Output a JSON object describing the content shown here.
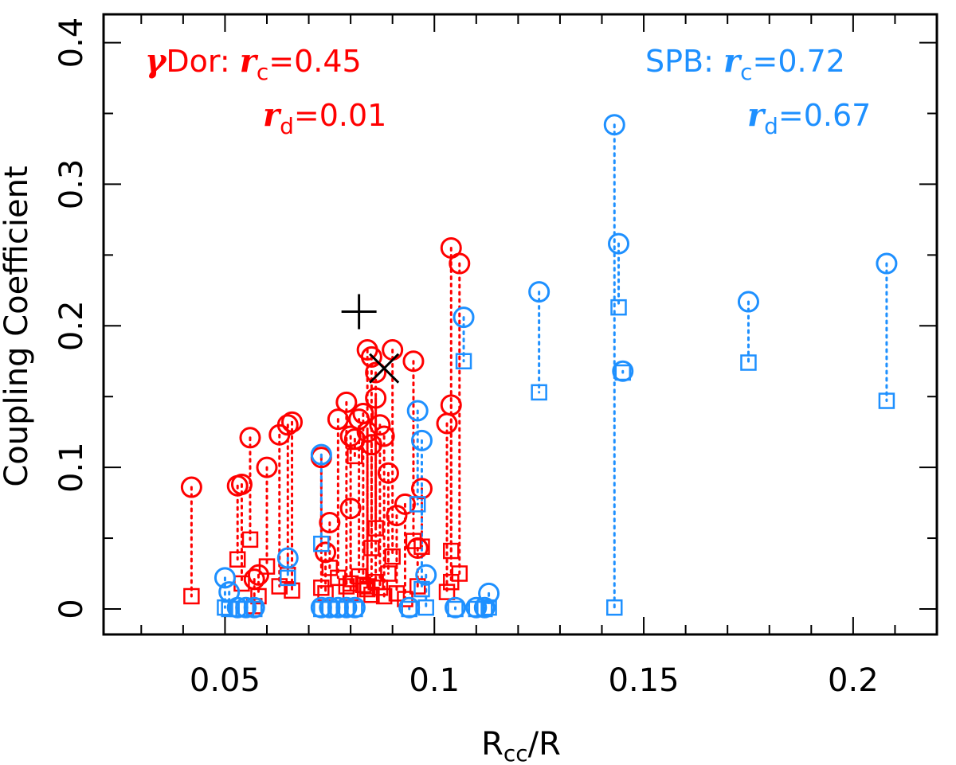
{
  "chart_data": {
    "type": "scatter",
    "xlabel": "R",
    "xlabel_sub": "cc",
    "xlabel_suffix": "/R",
    "ylabel": "Coupling Coefficient",
    "xlim": [
      0.021,
      0.22
    ],
    "ylim": [
      -0.018,
      0.42
    ],
    "x_ticks": [
      0.05,
      0.1,
      0.15,
      0.2
    ],
    "x_tick_labels": [
      "0.05",
      "0.1",
      "0.15",
      "0.2"
    ],
    "y_ticks": [
      0,
      0.1,
      0.2,
      0.3,
      0.4
    ],
    "y_tick_labels": [
      "0",
      "0.1",
      "0.2",
      "0.3",
      "0.4"
    ],
    "colors": {
      "gdor": "#ff0000",
      "spb": "#1e90ff",
      "marker": "#000000"
    },
    "annotations": {
      "gdor": {
        "prefix": "γ",
        "name": "Dor: ",
        "r": "r",
        "sub_c": "c",
        "val_c": "=0.45",
        "sub_d": "d",
        "val_d": "=0.01"
      },
      "spb": {
        "name": "SPB: ",
        "r": "r",
        "sub_c": "c",
        "val_c": "=0.72",
        "sub_d": "d",
        "val_d": "=0.67"
      }
    },
    "series": [
      {
        "name": "gamma Dor",
        "color": "#ff0000",
        "points": [
          {
            "x": 0.042,
            "circle": 0.086,
            "square": 0.009
          },
          {
            "x": 0.053,
            "circle": 0.087,
            "square": 0.035
          },
          {
            "x": 0.054,
            "circle": 0.088,
            "square": 0.018
          },
          {
            "x": 0.056,
            "circle": 0.121,
            "square": 0.049
          },
          {
            "x": 0.057,
            "circle": 0.021,
            "square": 0.002
          },
          {
            "x": 0.058,
            "circle": 0.024,
            "square": 0.009
          },
          {
            "x": 0.06,
            "circle": 0.1,
            "square": 0.03
          },
          {
            "x": 0.063,
            "circle": 0.123,
            "square": 0.016
          },
          {
            "x": 0.065,
            "circle": 0.13,
            "square": 0.024
          },
          {
            "x": 0.066,
            "circle": 0.132,
            "square": 0.013
          },
          {
            "x": 0.073,
            "circle": 0.107,
            "square": 0.015
          },
          {
            "x": 0.074,
            "circle": 0.04,
            "square": 0.011
          },
          {
            "x": 0.075,
            "circle": 0.061,
            "square": 0.029
          },
          {
            "x": 0.077,
            "circle": 0.134,
            "square": 0.022
          },
          {
            "x": 0.079,
            "circle": 0.146,
            "square": 0.016
          },
          {
            "x": 0.08,
            "circle": 0.122,
            "square": 0.018
          },
          {
            "x": 0.08,
            "circle": 0.071,
            "square": 0.011
          },
          {
            "x": 0.081,
            "circle": 0.12,
            "square": 0.108
          },
          {
            "x": 0.082,
            "circle": 0.134,
            "square": 0.023
          },
          {
            "x": 0.083,
            "circle": 0.138,
            "square": 0.017
          },
          {
            "x": 0.084,
            "circle": 0.125,
            "square": 0.014
          },
          {
            "x": 0.084,
            "circle": 0.183,
            "square": 0.016
          },
          {
            "x": 0.085,
            "circle": 0.116,
            "square": 0.01
          },
          {
            "x": 0.085,
            "circle": 0.178,
            "square": 0.043
          },
          {
            "x": 0.086,
            "circle": 0.167,
            "square": 0.057
          },
          {
            "x": 0.086,
            "circle": 0.149,
            "square": 0.019
          },
          {
            "x": 0.087,
            "circle": 0.13,
            "square": 0.015
          },
          {
            "x": 0.088,
            "circle": 0.122,
            "square": 0.009
          },
          {
            "x": 0.089,
            "circle": 0.096,
            "square": 0.025
          },
          {
            "x": 0.09,
            "circle": 0.183,
            "square": 0.037
          },
          {
            "x": 0.091,
            "circle": 0.066,
            "square": 0.011
          },
          {
            "x": 0.093,
            "circle": 0.074,
            "square": 0.007
          },
          {
            "x": 0.095,
            "circle": 0.175,
            "square": 0.048
          },
          {
            "x": 0.096,
            "circle": 0.043,
            "square": 0.016
          },
          {
            "x": 0.097,
            "circle": 0.085,
            "square": 0.044
          },
          {
            "x": 0.103,
            "circle": 0.131,
            "square": 0.012
          },
          {
            "x": 0.104,
            "circle": 0.144,
            "square": 0.041
          },
          {
            "x": 0.104,
            "circle": 0.255,
            "square": 0.019
          },
          {
            "x": 0.106,
            "circle": 0.244,
            "square": 0.025
          }
        ]
      },
      {
        "name": "SPB",
        "color": "#1e90ff",
        "points": [
          {
            "x": 0.05,
            "circle": 0.022,
            "square": 0.001
          },
          {
            "x": 0.051,
            "circle": 0.012,
            "square": 0.0
          },
          {
            "x": 0.053,
            "circle": 0.001,
            "square": 0.0
          },
          {
            "x": 0.055,
            "circle": 0.001,
            "square": 0.0
          },
          {
            "x": 0.057,
            "circle": 0.001,
            "square": 0.0
          },
          {
            "x": 0.065,
            "circle": 0.036,
            "square": 0.022
          },
          {
            "x": 0.073,
            "circle": 0.109,
            "square": 0.046
          },
          {
            "x": 0.073,
            "circle": 0.001,
            "square": 0.0
          },
          {
            "x": 0.075,
            "circle": 0.001,
            "square": 0.0
          },
          {
            "x": 0.077,
            "circle": 0.001,
            "square": 0.0
          },
          {
            "x": 0.079,
            "circle": 0.001,
            "square": 0.0
          },
          {
            "x": 0.081,
            "circle": 0.001,
            "square": 0.0
          },
          {
            "x": 0.094,
            "circle": 0.001,
            "square": 0.0
          },
          {
            "x": 0.096,
            "circle": 0.14,
            "square": 0.074
          },
          {
            "x": 0.097,
            "circle": 0.119,
            "square": 0.014
          },
          {
            "x": 0.098,
            "circle": 0.024,
            "square": 0.001
          },
          {
            "x": 0.105,
            "circle": 0.001,
            "square": 0.0
          },
          {
            "x": 0.107,
            "circle": 0.206,
            "square": 0.175
          },
          {
            "x": 0.11,
            "circle": 0.001,
            "square": 0.0
          },
          {
            "x": 0.112,
            "circle": 0.001,
            "square": 0.0
          },
          {
            "x": 0.113,
            "circle": 0.011,
            "square": 0.001
          },
          {
            "x": 0.125,
            "circle": 0.224,
            "square": 0.153
          },
          {
            "x": 0.143,
            "circle": 0.342,
            "square": 0.001
          },
          {
            "x": 0.144,
            "circle": 0.258,
            "square": 0.213
          },
          {
            "x": 0.145,
            "circle": 0.168,
            "square": 0.167
          },
          {
            "x": 0.175,
            "circle": 0.217,
            "square": 0.174
          },
          {
            "x": 0.208,
            "circle": 0.244,
            "square": 0.147
          }
        ]
      }
    ],
    "special_markers": [
      {
        "type": "plus",
        "x": 0.082,
        "y": 0.21
      },
      {
        "type": "cross",
        "x": 0.088,
        "y": 0.17
      }
    ]
  }
}
